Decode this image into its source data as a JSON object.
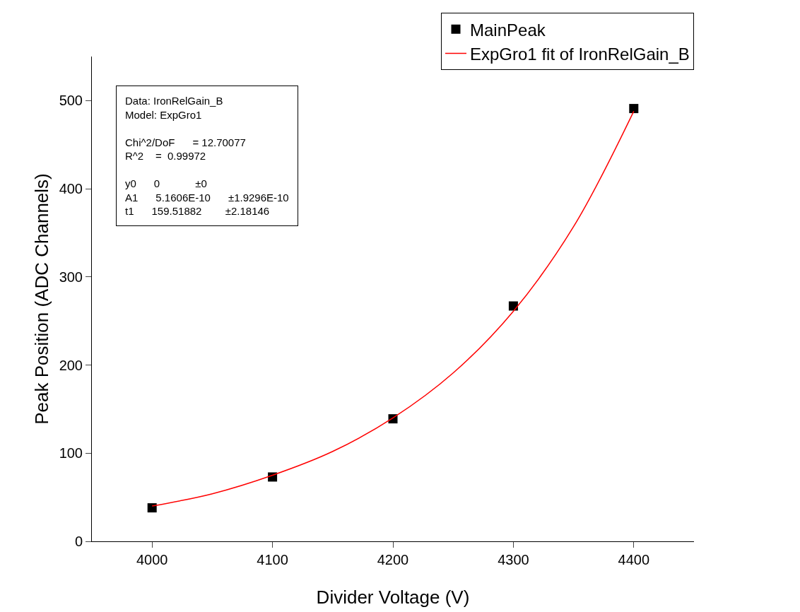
{
  "chart_data": {
    "type": "scatter",
    "xlabel": "Divider Voltage (V)",
    "ylabel": "Peak Position (ADC Channels)",
    "xlim": [
      3950,
      4450
    ],
    "xticks": [
      4000,
      4100,
      4200,
      4300,
      4400
    ],
    "ylim": [
      0,
      550
    ],
    "yticks": [
      0,
      100,
      200,
      300,
      400,
      500
    ],
    "grid": false,
    "legend": "top right",
    "marker": "square",
    "annotations": [
      "Data: IronRelGain_B\nModel: ExpGro1\n\nChi^2/DoF      = 12.70077\nR^2    =  0.99972\n\ny0      0            ±0\nA1      5.1606E-10      ±1.9296E-10\nt1      159.51882        ±2.18146"
    ],
    "series": [
      {
        "name": "MainPeak",
        "color": "#000000",
        "x": [
          4000,
          4100,
          4200,
          4300,
          4400
        ],
        "values": [
          38,
          73,
          139,
          267,
          491
        ]
      },
      {
        "name": "ExpGro1 fit of IronRelGain_B",
        "type": "line",
        "marker": "none",
        "color": "#ff0000",
        "x": [
          4000,
          4050,
          4100,
          4150,
          4200,
          4250,
          4300,
          4350,
          4400
        ],
        "values": [
          40,
          54,
          75,
          102,
          140,
          191,
          261,
          357,
          488
        ]
      }
    ]
  }
}
